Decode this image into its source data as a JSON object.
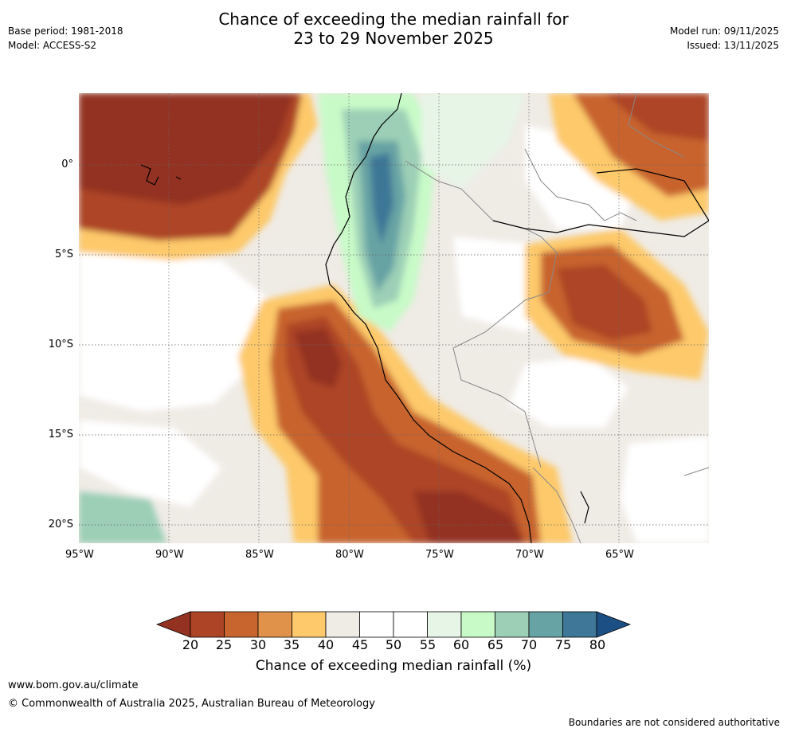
{
  "header": {
    "title_line1": "Chance of exceeding the median rainfall for",
    "title_line2": "23 to 29 November 2025",
    "base_period": "Base period: 1981-2018",
    "model": "Model: ACCESS-S2",
    "model_run": "Model run: 09/11/2025",
    "issued": "Issued: 13/11/2025"
  },
  "map": {
    "lon_labels": [
      "95°W",
      "90°W",
      "85°W",
      "80°W",
      "75°W",
      "70°W",
      "65°W"
    ],
    "lat_labels": [
      "0°",
      "5°S",
      "10°S",
      "15°S",
      "20°S"
    ],
    "lon_range": [
      -95,
      -60
    ],
    "lat_range": [
      -21,
      4
    ]
  },
  "colorbar": {
    "levels": [
      "20",
      "25",
      "30",
      "35",
      "40",
      "45",
      "50",
      "55",
      "60",
      "65",
      "70",
      "75",
      "80"
    ],
    "colors": [
      "#933220",
      "#ad4425",
      "#c8642d",
      "#e0924a",
      "#fdc96a",
      "#efebe5",
      "#ffffff",
      "#ffffff",
      "#e7f5e7",
      "#c8fac8",
      "#9ccfb6",
      "#67a3a4",
      "#3e7797",
      "#1c4f84"
    ],
    "title": "Chance of exceeding median rainfall (%)"
  },
  "footer": {
    "url": "www.bom.gov.au/climate",
    "copyright": "© Commonwealth of Australia 2025, Australian Bureau of Meteorology",
    "disclaimer": "Boundaries are not considered authoritative"
  }
}
